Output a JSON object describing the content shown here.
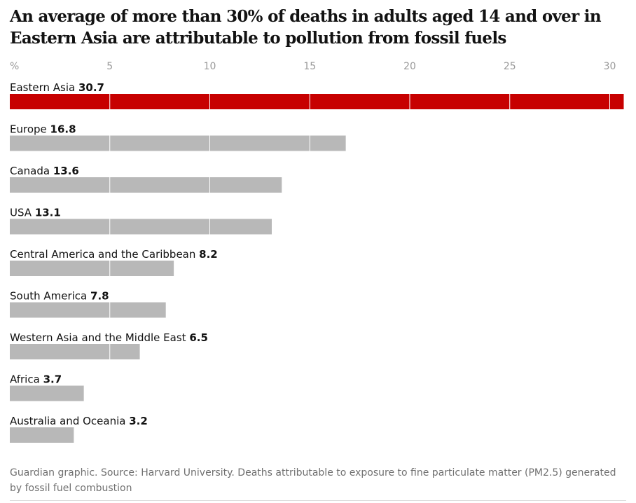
{
  "header": {
    "title": "An average of more than 30% of deaths in adults aged 14 and over in Eastern Asia are attributable to pollution from fossil fuels"
  },
  "footer": {
    "source": "Guardian graphic. Source: Harvard University. Deaths attributable to exposure to fine particulate matter (PM2.5) generated by fossil fuel combustion"
  },
  "colors": {
    "highlight_bar": "#c70000",
    "default_bar": "#b8b8b8",
    "gridline": "#ffffff",
    "axis_text": "#999999"
  },
  "chart_data": {
    "type": "bar",
    "orientation": "horizontal",
    "unit_label": "%",
    "x_ticks": [
      5,
      10,
      15,
      20,
      25,
      30
    ],
    "xlim": [
      0,
      30.8
    ],
    "grid": true,
    "categories": [
      "Eastern Asia",
      "Europe",
      "Canada",
      "USA",
      "Central America and the Caribbean",
      "South America",
      "Western Asia and the Middle East",
      "Africa",
      "Australia and Oceania"
    ],
    "values": [
      30.7,
      16.8,
      13.6,
      13.1,
      8.2,
      7.8,
      6.5,
      3.7,
      3.2
    ],
    "value_labels": [
      "30.7",
      "16.8",
      "13.6",
      "13.1",
      "8.2",
      "7.8",
      "6.5",
      "3.7",
      "3.2"
    ],
    "highlighted": "Eastern Asia"
  }
}
